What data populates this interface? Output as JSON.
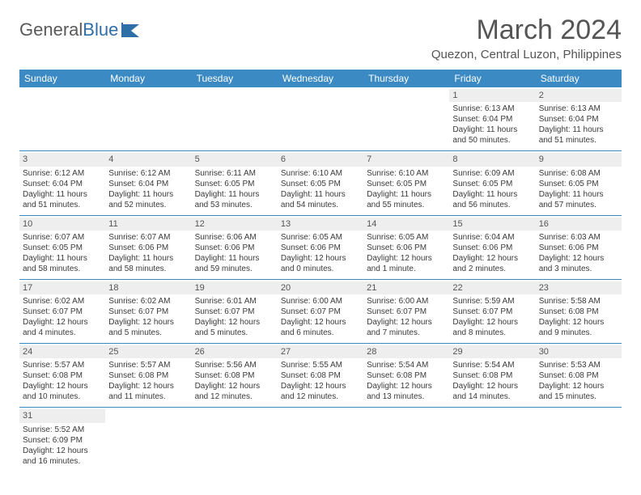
{
  "brand": {
    "first": "General",
    "second": "Blue"
  },
  "title": "March 2024",
  "location": "Quezon, Central Luzon, Philippines",
  "colors": {
    "header_bg": "#3b8ac4",
    "header_text": "#ffffff",
    "daynum_bg": "#eeeeee",
    "text": "#3a3a3a",
    "row_border": "#3b8ac4",
    "logo_accent": "#2f6fa8"
  },
  "day_labels": [
    "Sunday",
    "Monday",
    "Tuesday",
    "Wednesday",
    "Thursday",
    "Friday",
    "Saturday"
  ],
  "weeks": [
    [
      {
        "day": "",
        "lines": []
      },
      {
        "day": "",
        "lines": []
      },
      {
        "day": "",
        "lines": []
      },
      {
        "day": "",
        "lines": []
      },
      {
        "day": "",
        "lines": []
      },
      {
        "day": "1",
        "lines": [
          "Sunrise: 6:13 AM",
          "Sunset: 6:04 PM",
          "Daylight: 11 hours",
          "and 50 minutes."
        ]
      },
      {
        "day": "2",
        "lines": [
          "Sunrise: 6:13 AM",
          "Sunset: 6:04 PM",
          "Daylight: 11 hours",
          "and 51 minutes."
        ]
      }
    ],
    [
      {
        "day": "3",
        "lines": [
          "Sunrise: 6:12 AM",
          "Sunset: 6:04 PM",
          "Daylight: 11 hours",
          "and 51 minutes."
        ]
      },
      {
        "day": "4",
        "lines": [
          "Sunrise: 6:12 AM",
          "Sunset: 6:04 PM",
          "Daylight: 11 hours",
          "and 52 minutes."
        ]
      },
      {
        "day": "5",
        "lines": [
          "Sunrise: 6:11 AM",
          "Sunset: 6:05 PM",
          "Daylight: 11 hours",
          "and 53 minutes."
        ]
      },
      {
        "day": "6",
        "lines": [
          "Sunrise: 6:10 AM",
          "Sunset: 6:05 PM",
          "Daylight: 11 hours",
          "and 54 minutes."
        ]
      },
      {
        "day": "7",
        "lines": [
          "Sunrise: 6:10 AM",
          "Sunset: 6:05 PM",
          "Daylight: 11 hours",
          "and 55 minutes."
        ]
      },
      {
        "day": "8",
        "lines": [
          "Sunrise: 6:09 AM",
          "Sunset: 6:05 PM",
          "Daylight: 11 hours",
          "and 56 minutes."
        ]
      },
      {
        "day": "9",
        "lines": [
          "Sunrise: 6:08 AM",
          "Sunset: 6:05 PM",
          "Daylight: 11 hours",
          "and 57 minutes."
        ]
      }
    ],
    [
      {
        "day": "10",
        "lines": [
          "Sunrise: 6:07 AM",
          "Sunset: 6:05 PM",
          "Daylight: 11 hours",
          "and 58 minutes."
        ]
      },
      {
        "day": "11",
        "lines": [
          "Sunrise: 6:07 AM",
          "Sunset: 6:06 PM",
          "Daylight: 11 hours",
          "and 58 minutes."
        ]
      },
      {
        "day": "12",
        "lines": [
          "Sunrise: 6:06 AM",
          "Sunset: 6:06 PM",
          "Daylight: 11 hours",
          "and 59 minutes."
        ]
      },
      {
        "day": "13",
        "lines": [
          "Sunrise: 6:05 AM",
          "Sunset: 6:06 PM",
          "Daylight: 12 hours",
          "and 0 minutes."
        ]
      },
      {
        "day": "14",
        "lines": [
          "Sunrise: 6:05 AM",
          "Sunset: 6:06 PM",
          "Daylight: 12 hours",
          "and 1 minute."
        ]
      },
      {
        "day": "15",
        "lines": [
          "Sunrise: 6:04 AM",
          "Sunset: 6:06 PM",
          "Daylight: 12 hours",
          "and 2 minutes."
        ]
      },
      {
        "day": "16",
        "lines": [
          "Sunrise: 6:03 AM",
          "Sunset: 6:06 PM",
          "Daylight: 12 hours",
          "and 3 minutes."
        ]
      }
    ],
    [
      {
        "day": "17",
        "lines": [
          "Sunrise: 6:02 AM",
          "Sunset: 6:07 PM",
          "Daylight: 12 hours",
          "and 4 minutes."
        ]
      },
      {
        "day": "18",
        "lines": [
          "Sunrise: 6:02 AM",
          "Sunset: 6:07 PM",
          "Daylight: 12 hours",
          "and 5 minutes."
        ]
      },
      {
        "day": "19",
        "lines": [
          "Sunrise: 6:01 AM",
          "Sunset: 6:07 PM",
          "Daylight: 12 hours",
          "and 5 minutes."
        ]
      },
      {
        "day": "20",
        "lines": [
          "Sunrise: 6:00 AM",
          "Sunset: 6:07 PM",
          "Daylight: 12 hours",
          "and 6 minutes."
        ]
      },
      {
        "day": "21",
        "lines": [
          "Sunrise: 6:00 AM",
          "Sunset: 6:07 PM",
          "Daylight: 12 hours",
          "and 7 minutes."
        ]
      },
      {
        "day": "22",
        "lines": [
          "Sunrise: 5:59 AM",
          "Sunset: 6:07 PM",
          "Daylight: 12 hours",
          "and 8 minutes."
        ]
      },
      {
        "day": "23",
        "lines": [
          "Sunrise: 5:58 AM",
          "Sunset: 6:08 PM",
          "Daylight: 12 hours",
          "and 9 minutes."
        ]
      }
    ],
    [
      {
        "day": "24",
        "lines": [
          "Sunrise: 5:57 AM",
          "Sunset: 6:08 PM",
          "Daylight: 12 hours",
          "and 10 minutes."
        ]
      },
      {
        "day": "25",
        "lines": [
          "Sunrise: 5:57 AM",
          "Sunset: 6:08 PM",
          "Daylight: 12 hours",
          "and 11 minutes."
        ]
      },
      {
        "day": "26",
        "lines": [
          "Sunrise: 5:56 AM",
          "Sunset: 6:08 PM",
          "Daylight: 12 hours",
          "and 12 minutes."
        ]
      },
      {
        "day": "27",
        "lines": [
          "Sunrise: 5:55 AM",
          "Sunset: 6:08 PM",
          "Daylight: 12 hours",
          "and 12 minutes."
        ]
      },
      {
        "day": "28",
        "lines": [
          "Sunrise: 5:54 AM",
          "Sunset: 6:08 PM",
          "Daylight: 12 hours",
          "and 13 minutes."
        ]
      },
      {
        "day": "29",
        "lines": [
          "Sunrise: 5:54 AM",
          "Sunset: 6:08 PM",
          "Daylight: 12 hours",
          "and 14 minutes."
        ]
      },
      {
        "day": "30",
        "lines": [
          "Sunrise: 5:53 AM",
          "Sunset: 6:08 PM",
          "Daylight: 12 hours",
          "and 15 minutes."
        ]
      }
    ],
    [
      {
        "day": "31",
        "lines": [
          "Sunrise: 5:52 AM",
          "Sunset: 6:09 PM",
          "Daylight: 12 hours",
          "and 16 minutes."
        ]
      },
      {
        "day": "",
        "lines": []
      },
      {
        "day": "",
        "lines": []
      },
      {
        "day": "",
        "lines": []
      },
      {
        "day": "",
        "lines": []
      },
      {
        "day": "",
        "lines": []
      },
      {
        "day": "",
        "lines": []
      }
    ]
  ]
}
